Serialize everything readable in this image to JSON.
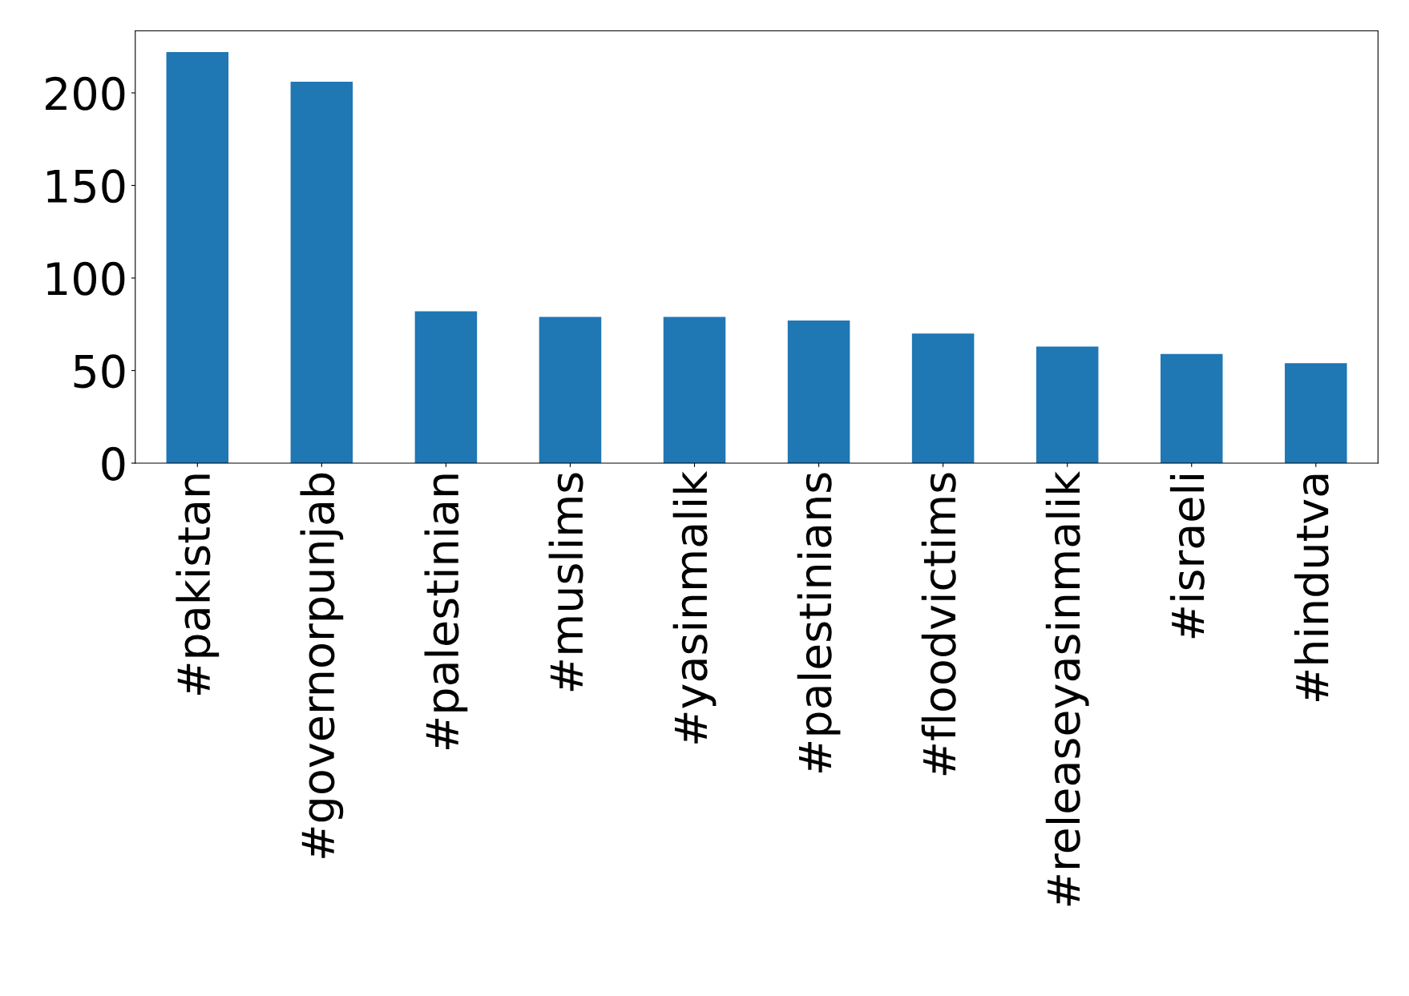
{
  "chart_data": {
    "type": "bar",
    "categories": [
      "#pakistan",
      "#governorpunjab",
      "#palestinian",
      "#muslims",
      "#yasinmalik",
      "#palestinians",
      "#floodvictims",
      "#releaseyasinmalik",
      "#israeli",
      "#hindutva"
    ],
    "values": [
      222,
      206,
      82,
      79,
      79,
      77,
      70,
      63,
      59,
      54
    ],
    "color": "#1f77b4",
    "ylim": [
      0,
      233.5
    ],
    "yticks": [
      0,
      50,
      100,
      150,
      200
    ],
    "grid": false,
    "legend": false
  }
}
